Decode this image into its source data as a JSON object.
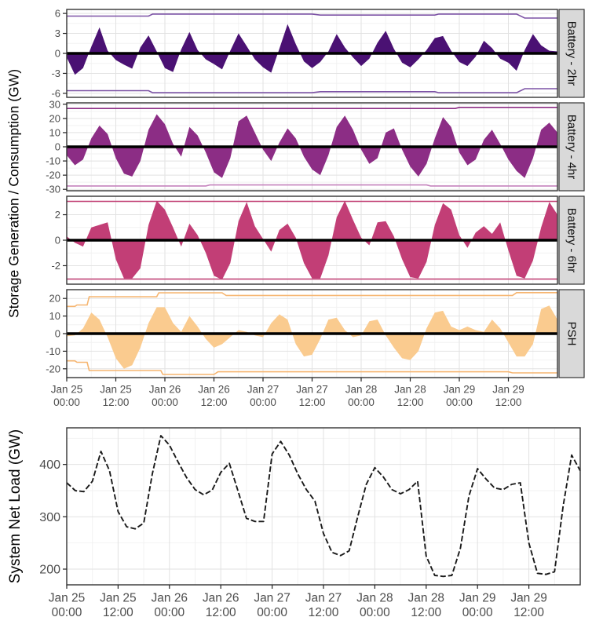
{
  "storage_figure": {
    "y_axis_title": "Storage Generation / Consumption (GW)"
  },
  "netload_figure": {
    "y_axis_title": "System Net Load (GW)"
  },
  "x_axis": {
    "tick_hours": [
      0,
      12,
      24,
      36,
      48,
      60,
      72,
      84,
      96,
      108
    ],
    "tick_labels": [
      [
        "Jan 25",
        "00:00"
      ],
      [
        "Jan 25",
        "12:00"
      ],
      [
        "Jan 26",
        "00:00"
      ],
      [
        "Jan 26",
        "12:00"
      ],
      [
        "Jan 27",
        "00:00"
      ],
      [
        "Jan 27",
        "12:00"
      ],
      [
        "Jan 28",
        "00:00"
      ],
      [
        "Jan 28",
        "12:00"
      ],
      [
        "Jan 29",
        "00:00"
      ],
      [
        "Jan 29",
        "12:00"
      ]
    ],
    "hours_domain": [
      0,
      120
    ]
  },
  "colors": {
    "battery_2hr_fill": "#4A1173",
    "battery_2hr_capacity": "#7C52A5",
    "battery_4hr_fill": "#8C2D85",
    "battery_4hr_capacity_top": "#8C2D85",
    "battery_4hr_capacity_bottom": "#C583BD",
    "battery_6hr_fill": "#C23E76",
    "battery_6hr_capacity": "#C13D73",
    "psh_fill": "#FACB8F",
    "psh_capacity": "#F6B570",
    "netload_line": "#1A1A1A",
    "zero_line": "#000000",
    "panel_border": "#333333",
    "strip_bg": "#D9D9D9",
    "grid_major": "#E2E2E2",
    "grid_minor": "#F2F2F2",
    "tick_text": "#4D4D4D"
  },
  "chart_data": [
    {
      "type": "area",
      "title": "Battery - 2hr",
      "ylabel_units": "GW",
      "ylim": [
        -6.6,
        6.6
      ],
      "yticks": [
        6,
        3,
        0,
        -3,
        -6
      ],
      "x_step_hours": 2,
      "values": [
        -0.6,
        -3.2,
        -2.2,
        1.0,
        3.9,
        0.4,
        -1.0,
        -1.7,
        -2.3,
        0.9,
        2.7,
        0.3,
        -2.2,
        -2.8,
        0.6,
        3.2,
        0.5,
        -0.9,
        -1.6,
        -2.4,
        0.4,
        3.0,
        1.1,
        -0.9,
        -2.1,
        -2.9,
        0.7,
        4.4,
        1.4,
        -1.2,
        -2.2,
        -1.3,
        0.3,
        2.9,
        0.9,
        -0.6,
        -1.9,
        -0.8,
        1.6,
        3.4,
        0.7,
        -1.4,
        -2.1,
        -0.9,
        0.5,
        2.3,
        2.6,
        0.4,
        -1.3,
        -1.9,
        -0.5,
        1.9,
        0.8,
        -0.8,
        -1.4,
        -2.6,
        0.5,
        2.9,
        1.2,
        0.4,
        0.3
      ],
      "capacity_top": [
        [
          0,
          5.6
        ],
        [
          20,
          5.6
        ],
        [
          21,
          5.9
        ],
        [
          60,
          5.9
        ],
        [
          62,
          5.75
        ],
        [
          90,
          5.75
        ],
        [
          91,
          5.9
        ],
        [
          110,
          5.9
        ],
        [
          112,
          5.3
        ],
        [
          120,
          5.3
        ]
      ],
      "capacity_bottom": [
        [
          0,
          -5.6
        ],
        [
          20,
          -5.6
        ],
        [
          21,
          -5.9
        ],
        [
          60,
          -5.9
        ],
        [
          62,
          -5.75
        ],
        [
          90,
          -5.75
        ],
        [
          91,
          -5.9
        ],
        [
          110,
          -5.9
        ],
        [
          112,
          -5.3
        ],
        [
          120,
          -5.3
        ]
      ],
      "fill": "#4A1173",
      "cap_top_color": "#7C52A5",
      "cap_bottom_color": "#7C52A5"
    },
    {
      "type": "area",
      "title": "Battery - 4hr",
      "ylabel_units": "GW",
      "ylim": [
        -31,
        31
      ],
      "yticks": [
        30,
        20,
        10,
        0,
        -10,
        -20,
        -30
      ],
      "x_step_hours": 2,
      "values": [
        -6,
        -13,
        -9,
        6,
        15,
        9,
        -8,
        -19,
        -21,
        -10,
        12,
        23,
        16,
        2,
        -7,
        14,
        8,
        -4,
        -18,
        -22,
        -8,
        18,
        22,
        10,
        -2,
        -10,
        3,
        13,
        6,
        -7,
        -16,
        -20,
        -6,
        14,
        22,
        12,
        -2,
        -12,
        -8,
        10,
        13,
        -2,
        -14,
        -21,
        -12,
        6,
        21,
        14,
        -4,
        -13,
        -9,
        5,
        12,
        2,
        -9,
        -17,
        -22,
        -8,
        12,
        17,
        10
      ],
      "capacity_top": [
        [
          0,
          27
        ],
        [
          95,
          27
        ],
        [
          96,
          27.8
        ],
        [
          120,
          27.8
        ]
      ],
      "capacity_bottom": [
        [
          0,
          -27.6
        ],
        [
          34,
          -27.6
        ],
        [
          35,
          -26.9
        ],
        [
          88,
          -26.9
        ],
        [
          89,
          -27.6
        ],
        [
          120,
          -27.6
        ]
      ],
      "fill": "#8C2D85",
      "cap_top_color": "#8C2D85",
      "cap_bottom_color": "#C583BD"
    },
    {
      "type": "area",
      "title": "Battery - 6hr",
      "ylabel_units": "GW",
      "ylim": [
        -3.45,
        3.45
      ],
      "yticks": [
        2,
        0,
        -2
      ],
      "x_step_hours": 2,
      "values": [
        0.3,
        -0.2,
        -0.5,
        1.0,
        1.2,
        1.4,
        -1.5,
        -3.0,
        -3.0,
        -2.2,
        1.2,
        3.1,
        2.4,
        1.0,
        -0.5,
        1.3,
        0.4,
        -1.0,
        -2.8,
        -3.1,
        -1.8,
        1.5,
        3.0,
        1.1,
        0.1,
        -0.9,
        0.8,
        1.3,
        0.2,
        -1.8,
        -3.0,
        -3.0,
        -1.2,
        1.8,
        3.1,
        1.6,
        0.2,
        -0.4,
        1.4,
        1.5,
        0.3,
        -1.5,
        -2.9,
        -3.0,
        -1.7,
        1.2,
        2.9,
        2.4,
        0.4,
        -0.6,
        0.6,
        1.1,
        0.5,
        1.4,
        -0.8,
        -2.8,
        -3.0,
        -1.6,
        1.0,
        3.0,
        2.0
      ],
      "capacity_top": [
        [
          0,
          3.05
        ],
        [
          120,
          3.05
        ]
      ],
      "capacity_bottom": [
        [
          0,
          -3.05
        ],
        [
          120,
          -3.05
        ]
      ],
      "fill": "#C23E76",
      "cap_top_color": "#C13D73",
      "cap_bottom_color": "#C13D73"
    },
    {
      "type": "area",
      "title": "PSH",
      "ylabel_units": "GW",
      "ylim": [
        -25,
        25
      ],
      "yticks": [
        20,
        10,
        0,
        -10,
        -20
      ],
      "x_step_hours": 2,
      "values": [
        -1.5,
        -1.0,
        3,
        12,
        8,
        -2,
        -14,
        -20,
        -18,
        -8,
        6,
        15,
        15,
        6,
        1,
        10,
        4,
        -3,
        -8,
        -6,
        -2,
        2,
        1,
        -1,
        -2,
        6,
        11,
        8,
        -6,
        -13,
        -12,
        -3,
        8,
        9,
        2,
        -2,
        -1,
        7,
        8,
        -1,
        -8,
        -14,
        -15,
        -10,
        3,
        12,
        13,
        4,
        2,
        4,
        2,
        1,
        8,
        3,
        -5,
        -13,
        -13,
        -6,
        14,
        16,
        8
      ],
      "capacity_top": [
        [
          0,
          15.5
        ],
        [
          2,
          15.5
        ],
        [
          2.5,
          16.3
        ],
        [
          5,
          16.3
        ],
        [
          5.5,
          21
        ],
        [
          22,
          21
        ],
        [
          22.5,
          23.2
        ],
        [
          38,
          23.2
        ],
        [
          39,
          21.7
        ],
        [
          109,
          21.7
        ],
        [
          110,
          23.3
        ],
        [
          120,
          23.3
        ]
      ],
      "capacity_bottom": [
        [
          0,
          -15.5
        ],
        [
          2,
          -15.5
        ],
        [
          2.5,
          -16.3
        ],
        [
          5,
          -16.3
        ],
        [
          5.5,
          -21
        ],
        [
          23,
          -21
        ],
        [
          23.5,
          -23.2
        ],
        [
          36,
          -23.2
        ],
        [
          37,
          -21.7
        ],
        [
          108,
          -21.7
        ],
        [
          109,
          -22.3
        ],
        [
          120,
          -22.3
        ]
      ],
      "fill": "#FACB8F",
      "cap_top_color": "#F6B570",
      "cap_bottom_color": "#F6B570"
    },
    {
      "type": "line",
      "title": "System Net Load (GW)",
      "ylim": [
        170,
        470
      ],
      "yticks": [
        400,
        300,
        200
      ],
      "x_step_hours": 2,
      "values": [
        365,
        350,
        348,
        368,
        425,
        388,
        310,
        281,
        277,
        288,
        382,
        455,
        437,
        405,
        375,
        352,
        342,
        351,
        385,
        402,
        350,
        297,
        291,
        291,
        420,
        444,
        418,
        382,
        352,
        330,
        268,
        232,
        226,
        235,
        300,
        362,
        394,
        376,
        352,
        344,
        352,
        368,
        225,
        188,
        186,
        188,
        240,
        340,
        392,
        372,
        355,
        352,
        362,
        365,
        250,
        192,
        190,
        195,
        320,
        418,
        388
      ]
    }
  ]
}
